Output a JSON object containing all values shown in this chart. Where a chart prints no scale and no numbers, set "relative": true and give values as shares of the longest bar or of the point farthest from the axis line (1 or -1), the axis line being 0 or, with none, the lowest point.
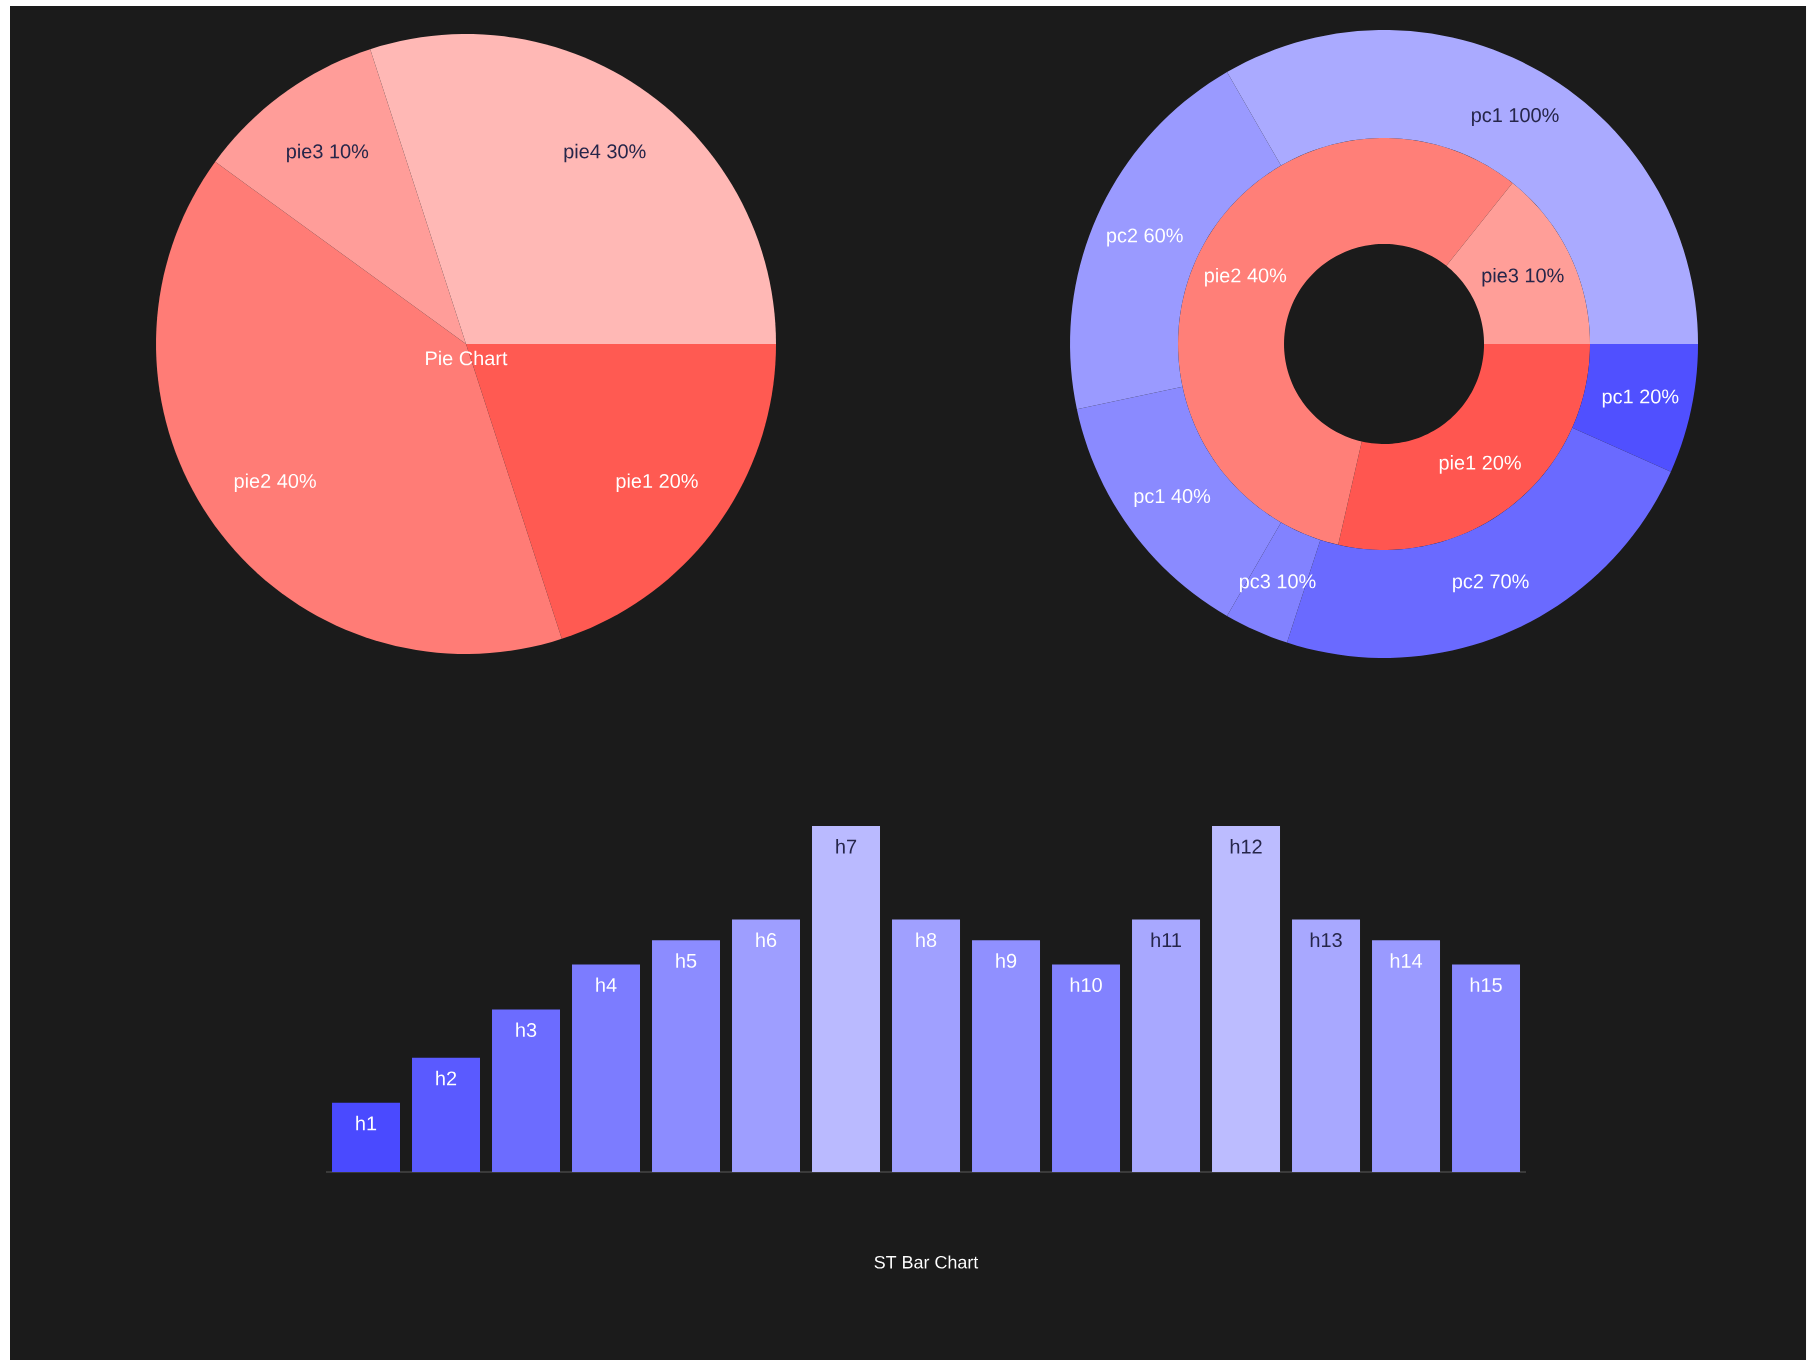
{
  "chart_data": [
    {
      "type": "pie",
      "title": "Pie Chart",
      "categories": [
        "pie1",
        "pie2",
        "pie3",
        "pie4"
      ],
      "values": [
        20,
        40,
        10,
        30
      ],
      "value_labels": [
        "20%",
        "40%",
        "10%",
        "30%"
      ],
      "colors": [
        "#ff5a52",
        "#ff7c76",
        "#ff9d99",
        "#ffb8b5"
      ]
    },
    {
      "type": "donut",
      "categories": [
        "pie1",
        "pie2",
        "pie3"
      ],
      "values": [
        20,
        40,
        10
      ],
      "value_labels": [
        "20%",
        "40%",
        "10%"
      ],
      "colors": [
        "#ff5650",
        "#ff7f78",
        "#ff9e98"
      ]
    },
    {
      "type": "donut",
      "categories": [
        "pc1",
        "pc2",
        "pc3",
        "pc1",
        "pc2",
        "pc1"
      ],
      "values": [
        20,
        70,
        10,
        40,
        60,
        100
      ],
      "value_labels": [
        "20%",
        "70%",
        "10%",
        "40%",
        "60%",
        "100%"
      ],
      "colors": [
        "#5050ff",
        "#6a6aff",
        "#8282ff",
        "#8a8aff",
        "#9a9aff",
        "#aaaaff"
      ]
    },
    {
      "type": "bar",
      "title": "ST Bar Chart",
      "relative": true,
      "categories": [
        "h1",
        "h2",
        "h3",
        "h4",
        "h5",
        "h6",
        "h7",
        "h8",
        "h9",
        "h10",
        "h11",
        "h12",
        "h13",
        "h14",
        "h15"
      ],
      "values": [
        0.2,
        0.33,
        0.47,
        0.6,
        0.67,
        0.73,
        1,
        0.73,
        0.67,
        0.6,
        0.73,
        1,
        0.73,
        0.67,
        0.6
      ],
      "colors": [
        "#4a4aff",
        "#5a5aff",
        "#6c6cff",
        "#7c7cff",
        "#8c8cff",
        "#9e9eff",
        "#babaff",
        "#a0a0ff",
        "#9090ff",
        "#8282ff",
        "#a8a8ff",
        "#bcbcff",
        "#a8a8ff",
        "#9a9aff",
        "#8888ff"
      ]
    }
  ]
}
